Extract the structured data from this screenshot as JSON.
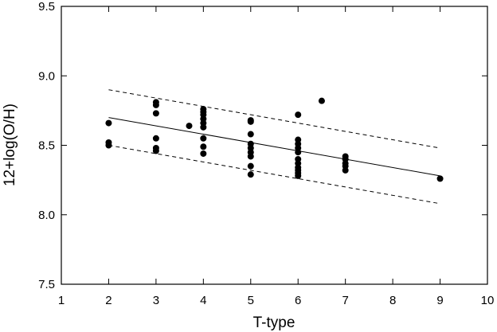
{
  "chart_data": {
    "type": "scatter",
    "xlabel": "T-type",
    "ylabel": "12+log(O/H)",
    "xlim": [
      1,
      10
    ],
    "ylim": [
      7.5,
      9.5
    ],
    "x_ticks": [
      "1",
      "2",
      "3",
      "4",
      "5",
      "6",
      "7",
      "8",
      "9",
      "10"
    ],
    "y_ticks": [
      "7.5",
      "8.0",
      "8.5",
      "9.0",
      "9.5"
    ],
    "grid": false,
    "points": [
      {
        "x": 2,
        "y": 8.66
      },
      {
        "x": 2,
        "y": 8.52
      },
      {
        "x": 2,
        "y": 8.5
      },
      {
        "x": 3,
        "y": 8.81
      },
      {
        "x": 3,
        "y": 8.79
      },
      {
        "x": 3,
        "y": 8.73
      },
      {
        "x": 3,
        "y": 8.55
      },
      {
        "x": 3,
        "y": 8.48
      },
      {
        "x": 3,
        "y": 8.46
      },
      {
        "x": 3.7,
        "y": 8.64
      },
      {
        "x": 4,
        "y": 8.76
      },
      {
        "x": 4,
        "y": 8.74
      },
      {
        "x": 4,
        "y": 8.72
      },
      {
        "x": 4,
        "y": 8.69
      },
      {
        "x": 4,
        "y": 8.66
      },
      {
        "x": 4,
        "y": 8.63
      },
      {
        "x": 4,
        "y": 8.55
      },
      {
        "x": 4,
        "y": 8.49
      },
      {
        "x": 4,
        "y": 8.44
      },
      {
        "x": 5,
        "y": 8.68
      },
      {
        "x": 5,
        "y": 8.67
      },
      {
        "x": 5,
        "y": 8.58
      },
      {
        "x": 5,
        "y": 8.51
      },
      {
        "x": 5,
        "y": 8.48
      },
      {
        "x": 5,
        "y": 8.45
      },
      {
        "x": 5,
        "y": 8.42
      },
      {
        "x": 5,
        "y": 8.35
      },
      {
        "x": 5,
        "y": 8.29
      },
      {
        "x": 6,
        "y": 8.72
      },
      {
        "x": 6,
        "y": 8.54
      },
      {
        "x": 6,
        "y": 8.51
      },
      {
        "x": 6,
        "y": 8.48
      },
      {
        "x": 6,
        "y": 8.45
      },
      {
        "x": 6,
        "y": 8.4
      },
      {
        "x": 6,
        "y": 8.37
      },
      {
        "x": 6,
        "y": 8.34
      },
      {
        "x": 6,
        "y": 8.32
      },
      {
        "x": 6,
        "y": 8.3
      },
      {
        "x": 6,
        "y": 8.28
      },
      {
        "x": 6.5,
        "y": 8.82
      },
      {
        "x": 7,
        "y": 8.42
      },
      {
        "x": 7,
        "y": 8.4
      },
      {
        "x": 7,
        "y": 8.37
      },
      {
        "x": 7,
        "y": 8.35
      },
      {
        "x": 7,
        "y": 8.32
      },
      {
        "x": 9,
        "y": 8.26
      }
    ],
    "fit_line": {
      "x": [
        2,
        9
      ],
      "y": [
        8.7,
        8.28
      ]
    },
    "bounds": [
      {
        "x": [
          2,
          9
        ],
        "y": [
          8.9,
          8.48
        ]
      },
      {
        "x": [
          2,
          9
        ],
        "y": [
          8.5,
          8.08
        ]
      }
    ]
  }
}
